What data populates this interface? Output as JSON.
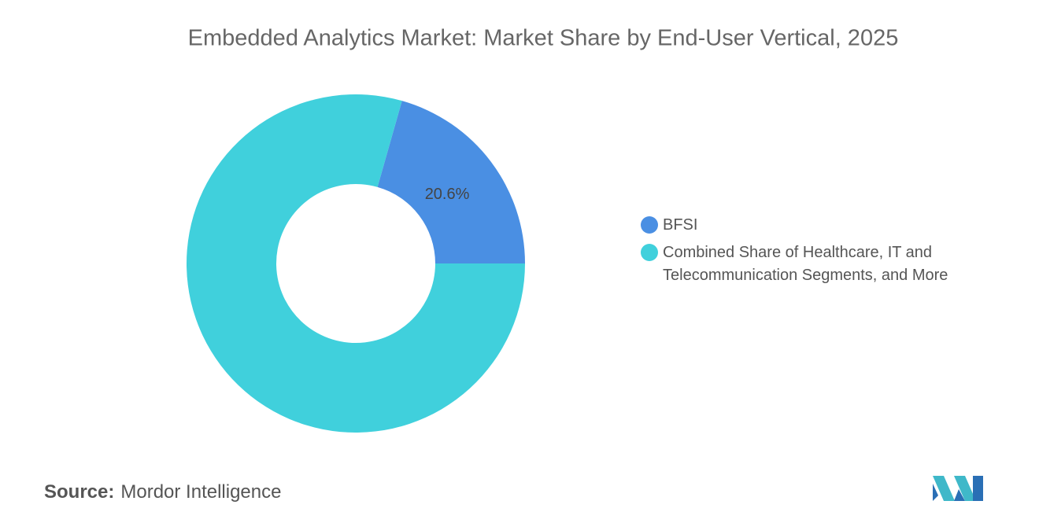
{
  "chart_data": {
    "type": "donut",
    "title": "Embedded Analytics Market: Market Share by End-User Vertical, 2025",
    "categories": [
      "BFSI",
      "Combined Share of Healthcare, IT and Telecommunication Segments, and More"
    ],
    "values": [
      20.6,
      79.4
    ],
    "value_labels": [
      "20.6%",
      null
    ],
    "colors": [
      "#4a8fe3",
      "#40d0dc"
    ]
  },
  "footer": {
    "source_label": "Source:",
    "source": "Mordor Intelligence"
  }
}
